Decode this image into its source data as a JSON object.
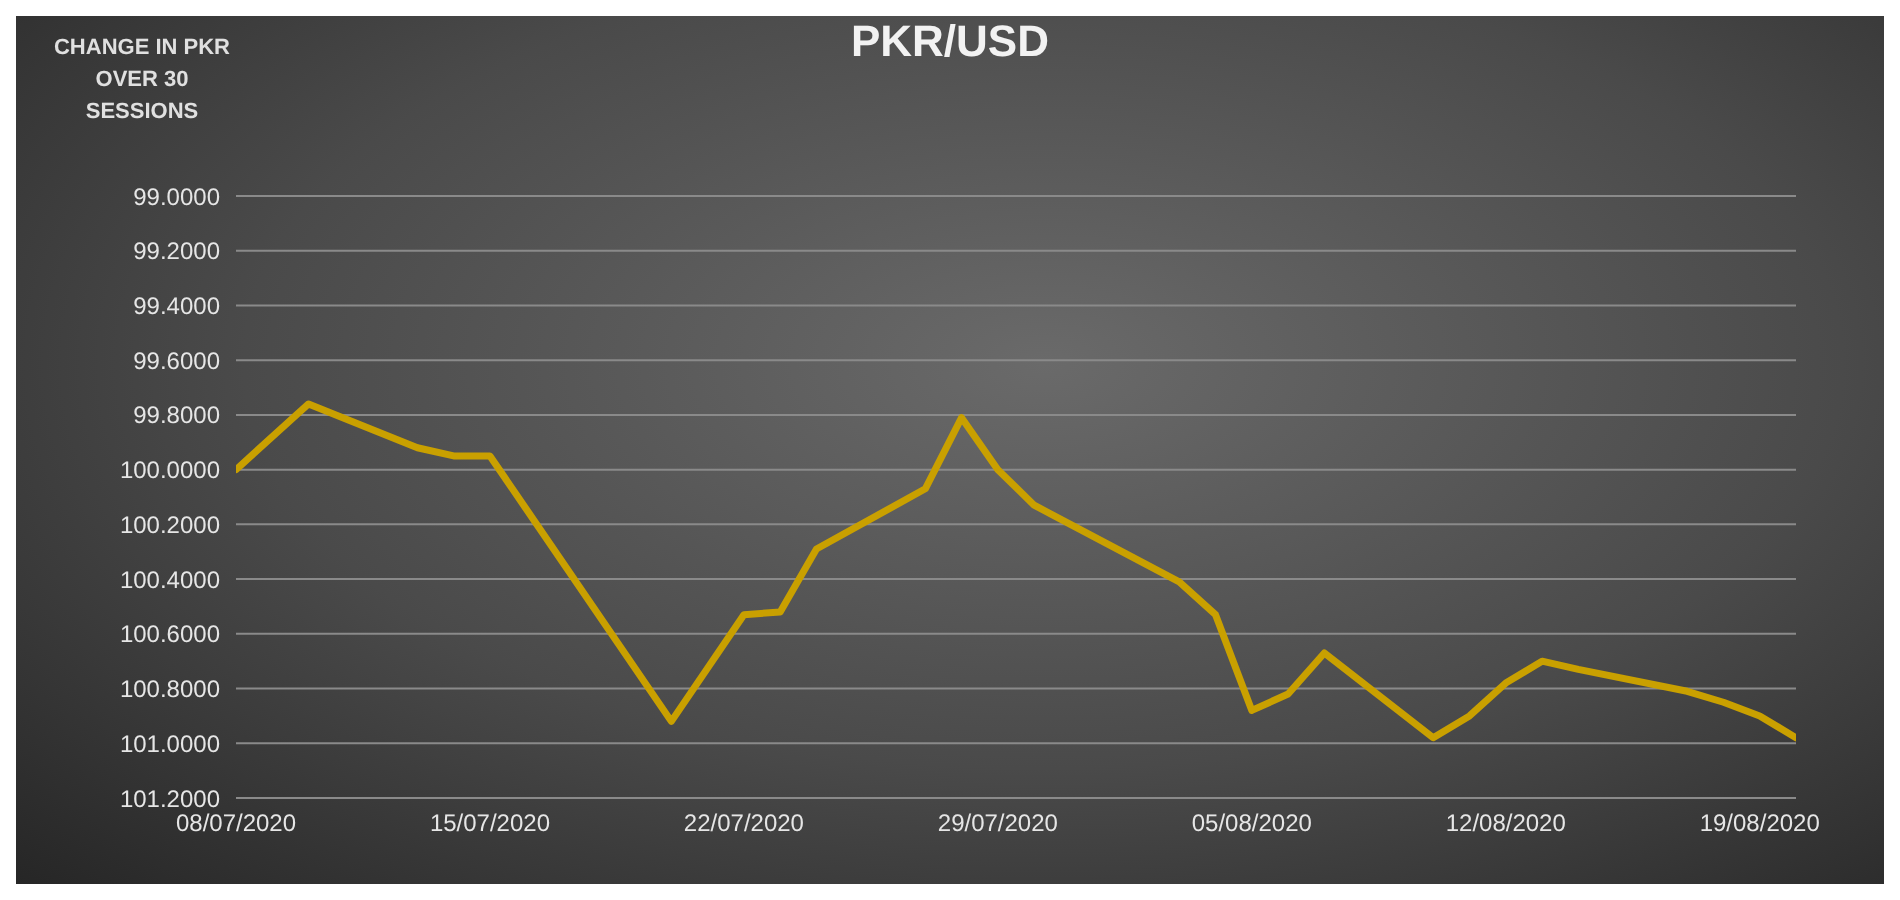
{
  "chart_data": {
    "type": "line",
    "title": "PKR/USD",
    "ylabel": "CHANGE IN PKR OVER 30 SESSIONS",
    "x": [
      "2020-07-08",
      "2020-07-10",
      "2020-07-13",
      "2020-07-14",
      "2020-07-15",
      "2020-07-20",
      "2020-07-22",
      "2020-07-23",
      "2020-07-24",
      "2020-07-27",
      "2020-07-28",
      "2020-07-29",
      "2020-07-30",
      "2020-07-31",
      "2020-08-03",
      "2020-08-04",
      "2020-08-05",
      "2020-08-06",
      "2020-08-07",
      "2020-08-10",
      "2020-08-11",
      "2020-08-12",
      "2020-08-13",
      "2020-08-14",
      "2020-08-17",
      "2020-08-18",
      "2020-08-19",
      "2020-08-20"
    ],
    "series": [
      {
        "color": "#c9a000",
        "values": [
          100.0,
          99.76,
          99.92,
          99.95,
          99.95,
          100.92,
          100.53,
          100.52,
          100.29,
          100.07,
          99.81,
          100.0,
          100.13,
          100.2,
          100.41,
          100.53,
          100.88,
          100.82,
          100.67,
          100.98,
          100.9,
          100.78,
          100.7,
          100.73,
          100.81,
          100.85,
          100.9,
          100.98
        ]
      }
    ],
    "xlim": [
      "2020-07-08",
      "2020-08-20"
    ],
    "xticks": [
      {
        "value": "2020-07-08",
        "label": "08/07/2020"
      },
      {
        "value": "2020-07-15",
        "label": "15/07/2020"
      },
      {
        "value": "2020-07-22",
        "label": "22/07/2020"
      },
      {
        "value": "2020-07-29",
        "label": "29/07/2020"
      },
      {
        "value": "2020-08-05",
        "label": "05/08/2020"
      },
      {
        "value": "2020-08-12",
        "label": "12/08/2020"
      },
      {
        "value": "2020-08-19",
        "label": "19/08/2020"
      }
    ],
    "ylim": [
      101.2,
      99.0
    ],
    "yticks": [
      {
        "value": 99.0,
        "label": "99.0000"
      },
      {
        "value": 99.2,
        "label": "99.2000"
      },
      {
        "value": 99.4,
        "label": "99.4000"
      },
      {
        "value": 99.6,
        "label": "99.6000"
      },
      {
        "value": 99.8,
        "label": "99.8000"
      },
      {
        "value": 100.0,
        "label": "100.0000"
      },
      {
        "value": 100.2,
        "label": "100.2000"
      },
      {
        "value": 100.4,
        "label": "100.4000"
      },
      {
        "value": 100.6,
        "label": "100.6000"
      },
      {
        "value": 100.8,
        "label": "100.8000"
      },
      {
        "value": 101.0,
        "label": "101.0000"
      },
      {
        "value": 101.2,
        "label": "101.2000"
      }
    ],
    "grid": "y",
    "legend": false,
    "marker": "none",
    "line_style": "solid"
  }
}
